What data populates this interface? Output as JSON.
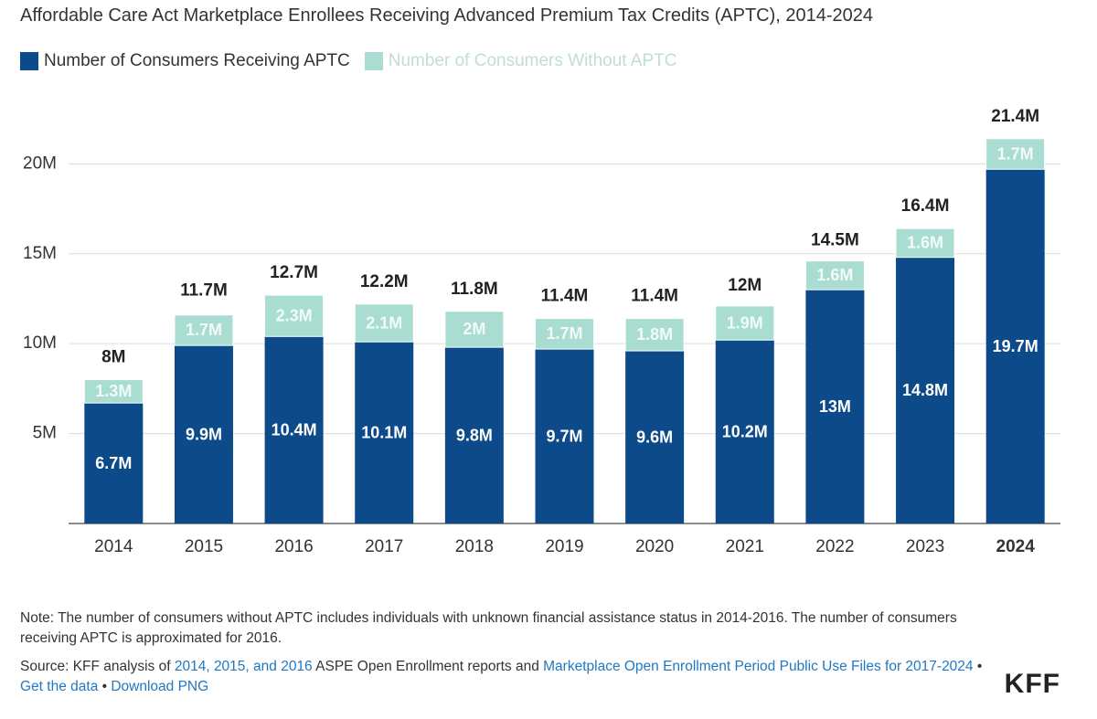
{
  "chart_data": {
    "type": "stacked-bar",
    "title": "Affordable Care Act Marketplace Enrollees Receiving Advanced Premium Tax Credits (APTC), 2014-2024",
    "categories": [
      "2014",
      "2015",
      "2016",
      "2017",
      "2018",
      "2019",
      "2020",
      "2021",
      "2022",
      "2023",
      "2024"
    ],
    "highlight": "2024",
    "series": [
      {
        "name": "Number of Consumers Receiving APTC",
        "color": "#0d4a8a",
        "values": [
          6.7,
          9.9,
          10.4,
          10.1,
          9.8,
          9.7,
          9.6,
          10.2,
          13,
          14.8,
          19.7
        ],
        "value_labels": [
          "6.7M",
          "9.9M",
          "10.4M",
          "10.1M",
          "9.8M",
          "9.7M",
          "9.6M",
          "10.2M",
          "13M",
          "14.8M",
          "19.7M"
        ]
      },
      {
        "name": "Number of Consumers Without APTC",
        "color": "#a9ddd1",
        "values": [
          1.3,
          1.7,
          2.3,
          2.1,
          2,
          1.7,
          1.8,
          1.9,
          1.6,
          1.6,
          1.7
        ],
        "value_labels": [
          "1.3M",
          "1.7M",
          "2.3M",
          "2.1M",
          "2M",
          "1.7M",
          "1.8M",
          "1.9M",
          "1.6M",
          "1.6M",
          "1.7M"
        ]
      }
    ],
    "totals": {
      "values": [
        8,
        11.7,
        12.7,
        12.2,
        11.8,
        11.4,
        11.4,
        12,
        14.5,
        16.4,
        21.4
      ],
      "value_labels": [
        "8M",
        "11.7M",
        "12.7M",
        "12.2M",
        "11.8M",
        "11.4M",
        "11.4M",
        "12M",
        "14.5M",
        "16.4M",
        "21.4M"
      ]
    },
    "ylim": [
      0,
      22
    ],
    "yticks": [
      {
        "value": 5,
        "label": "5M"
      },
      {
        "value": 10,
        "label": "10M"
      },
      {
        "value": 15,
        "label": "15M"
      },
      {
        "value": 20,
        "label": "20M"
      }
    ],
    "grid": true
  },
  "note": "Note: The number of consumers without APTC includes individuals with unknown financial assistance status in 2014-2016. The number of consumers receiving APTC is approximated for 2016.",
  "source": [
    {
      "text": "Source: KFF analysis of ",
      "link": false
    },
    {
      "text": "2014, 2015, and 2016",
      "link": true
    },
    {
      "text": " ASPE Open Enrollment reports and ",
      "link": false
    },
    {
      "text": "Marketplace Open Enrollment Period Public Use Files for 2017-2024",
      "link": true
    },
    {
      "text": " • ",
      "link": false
    },
    {
      "text": "Get the data",
      "link": true
    },
    {
      "text": " • ",
      "link": false
    },
    {
      "text": "Download PNG",
      "link": true
    }
  ],
  "logo": "KFF"
}
